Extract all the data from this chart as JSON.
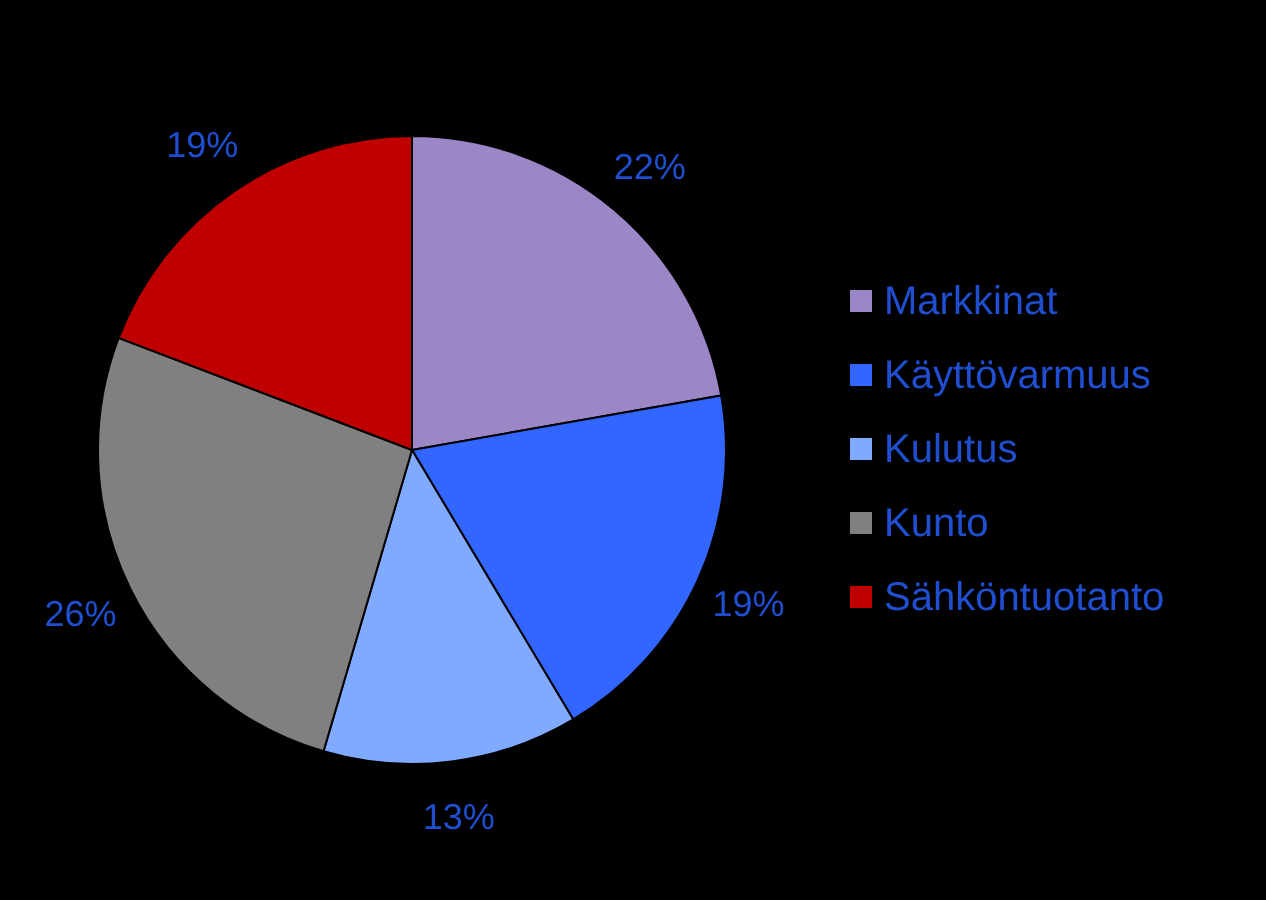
{
  "chart_data": {
    "type": "pie",
    "categories": [
      "Markkinat",
      "Käyttövarmuus",
      "Kulutus",
      "Kunto",
      "Sähköntuotanto"
    ],
    "values": [
      22,
      19,
      13,
      26,
      19
    ],
    "colors": [
      "#9b86c6",
      "#3366ff",
      "#80aaff",
      "#808080",
      "#c00000"
    ],
    "value_labels": [
      "22%",
      "19%",
      "13%",
      "26%",
      "19%"
    ],
    "legend": "right"
  }
}
